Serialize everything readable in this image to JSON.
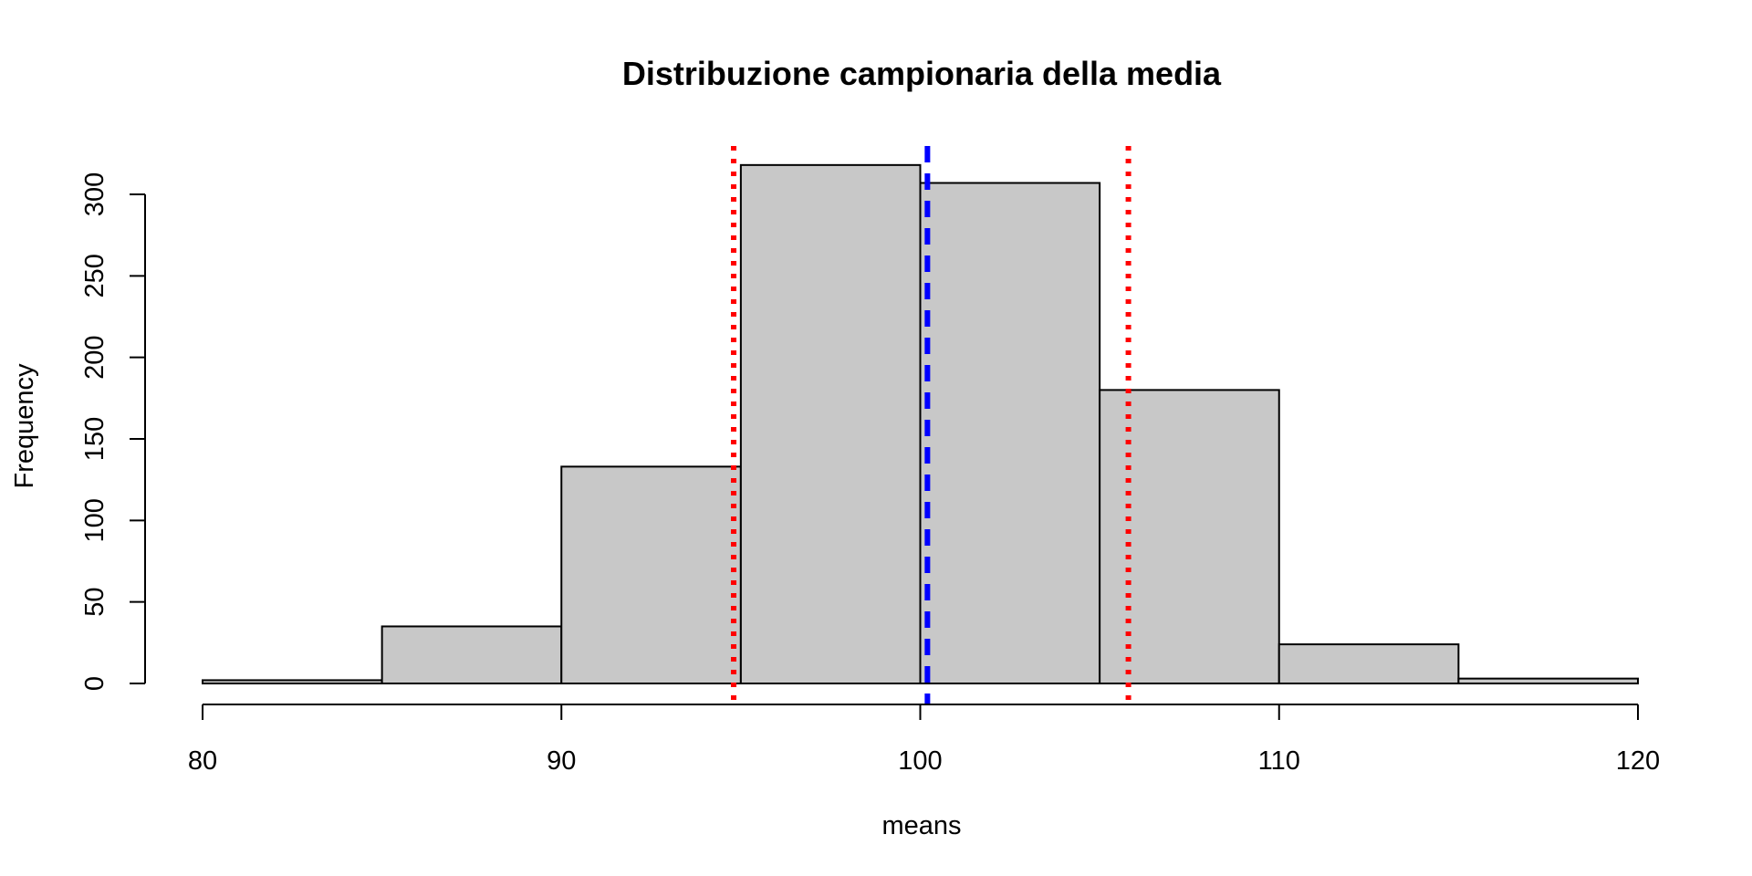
{
  "chart_data": {
    "type": "bar",
    "title": "Distribuzione campionaria della media",
    "xlabel": "means",
    "ylabel": "Frequency",
    "bins": [
      {
        "from": 80,
        "to": 85,
        "count": 2
      },
      {
        "from": 85,
        "to": 90,
        "count": 35
      },
      {
        "from": 90,
        "to": 95,
        "count": 133
      },
      {
        "from": 95,
        "to": 100,
        "count": 318
      },
      {
        "from": 100,
        "to": 105,
        "count": 307
      },
      {
        "from": 105,
        "to": 110,
        "count": 180
      },
      {
        "from": 110,
        "to": 115,
        "count": 24
      },
      {
        "from": 115,
        "to": 120,
        "count": 3
      }
    ],
    "xlim": [
      80,
      120
    ],
    "ylim": [
      0,
      300
    ],
    "xticks": [
      80,
      90,
      100,
      110,
      120
    ],
    "yticks": [
      0,
      50,
      100,
      150,
      200,
      250,
      300
    ],
    "bar_color": "#C8C8C8",
    "vlines": [
      {
        "x": 94.8,
        "color": "#FF0000",
        "style": "dotted"
      },
      {
        "x": 100.2,
        "color": "#0000FF",
        "style": "dashed"
      },
      {
        "x": 105.8,
        "color": "#FF0000",
        "style": "dotted"
      }
    ],
    "grid": false,
    "legend": "none"
  }
}
